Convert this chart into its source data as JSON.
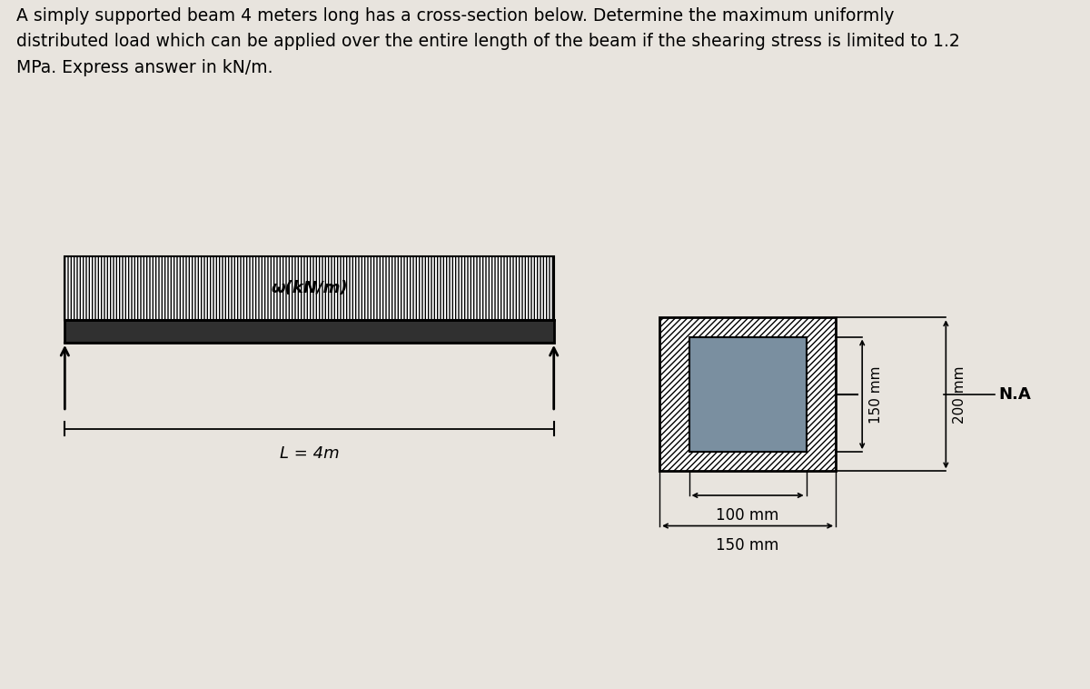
{
  "title_text": "A simply supported beam 4 meters long has a cross-section below. Determine the maximum uniformly\ndistributed load which can be applied over the entire length of the beam if the shearing stress is limited to 1.2\nMPa. Express answer in kN/m.",
  "title_fontsize": 13.5,
  "bg_color_page": "#e8e4de",
  "bg_color_panel": "#7a8fa0",
  "beam_label": "ω(kN/m)",
  "beam_length_label": "L = 4m",
  "na_label": "N.A",
  "label_100mm": "100 mm",
  "label_150mm_bot": "150 mm",
  "label_150mm_side": "150 mm",
  "label_200mm_side": "200 mm"
}
